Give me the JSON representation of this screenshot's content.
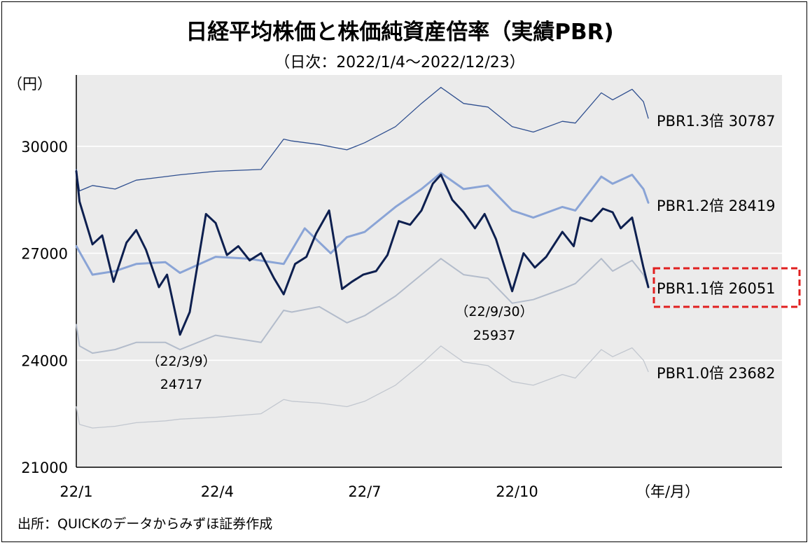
{
  "chart_data": {
    "type": "line",
    "title": "日経平均株価と株価純資産倍率（実績PBR)",
    "subtitle": "（日次：2022/1/4～2022/12/23）",
    "ylabel": "（円）",
    "xlabel": "（年/月）",
    "ylim": [
      21000,
      32000
    ],
    "yticks": [
      "30000",
      "27000",
      "24000",
      "21000"
    ],
    "xticks": [
      {
        "date": "2022-01-04",
        "label": "22/1"
      },
      {
        "date": "2022-04-01",
        "label": "22/4"
      },
      {
        "date": "2022-07-01",
        "label": "22/7"
      },
      {
        "date": "2022-10-03",
        "label": "22/10"
      }
    ],
    "x_range": [
      "2022-01-04",
      "2022-12-23"
    ],
    "grid": true,
    "background": "#ebebeb",
    "series": [
      {
        "name": "PBR1.3倍 30787",
        "color": "#2f4f8f",
        "width": 1.3,
        "dates": [
          "2022-01-04",
          "2022-01-06",
          "2022-01-14",
          "2022-01-28",
          "2022-02-10",
          "2022-02-28",
          "2022-03-09",
          "2022-03-31",
          "2022-04-28",
          "2022-05-12",
          "2022-05-17",
          "2022-06-03",
          "2022-06-20",
          "2022-07-01",
          "2022-07-20",
          "2022-08-05",
          "2022-08-17",
          "2022-08-31",
          "2022-09-15",
          "2022-09-30",
          "2022-10-13",
          "2022-10-31",
          "2022-11-08",
          "2022-11-24",
          "2022-12-01",
          "2022-12-13",
          "2022-12-20",
          "2022-12-23"
        ],
        "values": [
          29350,
          28750,
          28900,
          28800,
          29050,
          29150,
          29200,
          29300,
          29350,
          30200,
          30150,
          30050,
          29900,
          30100,
          30550,
          31200,
          31650,
          31200,
          31100,
          30550,
          30400,
          30700,
          30650,
          31500,
          31300,
          31600,
          31250,
          30787
        ]
      },
      {
        "name": "PBR1.2倍 28419",
        "color": "#8aa4d6",
        "width": 3,
        "dates": [
          "2022-01-04",
          "2022-01-14",
          "2022-01-28",
          "2022-02-10",
          "2022-02-28",
          "2022-03-09",
          "2022-03-31",
          "2022-04-20",
          "2022-05-12",
          "2022-05-25",
          "2022-06-10",
          "2022-06-20",
          "2022-07-01",
          "2022-07-20",
          "2022-08-05",
          "2022-08-17",
          "2022-08-31",
          "2022-09-15",
          "2022-09-30",
          "2022-10-13",
          "2022-10-31",
          "2022-11-08",
          "2022-11-24",
          "2022-12-01",
          "2022-12-13",
          "2022-12-20",
          "2022-12-23"
        ],
        "values": [
          27200,
          26400,
          26500,
          26700,
          26750,
          26450,
          26900,
          26850,
          26700,
          27700,
          27000,
          27450,
          27600,
          28300,
          28800,
          29250,
          28800,
          28900,
          28200,
          28000,
          28300,
          28200,
          29150,
          28950,
          29200,
          28800,
          28419
        ]
      },
      {
        "name": "PBR1.1倍 26051",
        "color": "#0d1f4f",
        "width": 3,
        "dates": [
          "2022-01-04",
          "2022-01-06",
          "2022-01-14",
          "2022-01-20",
          "2022-01-27",
          "2022-02-04",
          "2022-02-10",
          "2022-02-16",
          "2022-02-24",
          "2022-03-01",
          "2022-03-09",
          "2022-03-15",
          "2022-03-25",
          "2022-03-31",
          "2022-04-07",
          "2022-04-14",
          "2022-04-21",
          "2022-04-28",
          "2022-05-06",
          "2022-05-12",
          "2022-05-19",
          "2022-05-26",
          "2022-06-01",
          "2022-06-09",
          "2022-06-17",
          "2022-06-23",
          "2022-06-30",
          "2022-07-08",
          "2022-07-15",
          "2022-07-22",
          "2022-07-29",
          "2022-08-05",
          "2022-08-12",
          "2022-08-17",
          "2022-08-24",
          "2022-08-31",
          "2022-09-07",
          "2022-09-13",
          "2022-09-20",
          "2022-09-30",
          "2022-10-07",
          "2022-10-14",
          "2022-10-21",
          "2022-10-31",
          "2022-11-07",
          "2022-11-11",
          "2022-11-18",
          "2022-11-25",
          "2022-12-01",
          "2022-12-06",
          "2022-12-13",
          "2022-12-20",
          "2022-12-23"
        ],
        "values": [
          29300,
          28450,
          27250,
          27500,
          26200,
          27300,
          27650,
          27100,
          26050,
          26400,
          24717,
          25350,
          28100,
          27850,
          26950,
          27200,
          26800,
          27000,
          26300,
          25850,
          26700,
          26900,
          27550,
          28200,
          26000,
          26200,
          26400,
          26500,
          26950,
          27900,
          27800,
          28200,
          28950,
          29200,
          28500,
          28150,
          27700,
          28100,
          27400,
          25937,
          27000,
          26600,
          26900,
          27600,
          27200,
          28000,
          27900,
          28250,
          28150,
          27700,
          28000,
          26600,
          26051
        ]
      },
      {
        "name": "PBR1.0倍 23682",
        "color": "#c2c7cf",
        "width": 1.3,
        "dates": [
          "2022-01-04",
          "2022-01-06",
          "2022-01-14",
          "2022-01-28",
          "2022-02-10",
          "2022-02-28",
          "2022-03-09",
          "2022-03-31",
          "2022-04-28",
          "2022-05-12",
          "2022-05-17",
          "2022-06-03",
          "2022-06-20",
          "2022-07-01",
          "2022-07-20",
          "2022-08-05",
          "2022-08-17",
          "2022-08-31",
          "2022-09-15",
          "2022-09-30",
          "2022-10-13",
          "2022-10-31",
          "2022-11-08",
          "2022-11-24",
          "2022-12-01",
          "2022-12-13",
          "2022-12-20",
          "2022-12-23"
        ],
        "values": [
          22700,
          22200,
          22100,
          22150,
          22250,
          22300,
          22350,
          22400,
          22500,
          22900,
          22850,
          22800,
          22700,
          22850,
          23300,
          23900,
          24400,
          23950,
          23850,
          23400,
          23300,
          23600,
          23500,
          24300,
          24100,
          24350,
          24000,
          23682
        ]
      },
      {
        "name": "",
        "color": "#b3bccb",
        "width": 2,
        "dates": [
          "2022-01-04",
          "2022-01-06",
          "2022-01-14",
          "2022-01-28",
          "2022-02-10",
          "2022-02-28",
          "2022-03-09",
          "2022-03-31",
          "2022-04-28",
          "2022-05-12",
          "2022-05-17",
          "2022-06-03",
          "2022-06-20",
          "2022-07-01",
          "2022-07-20",
          "2022-08-05",
          "2022-08-17",
          "2022-08-31",
          "2022-09-15",
          "2022-09-30",
          "2022-10-13",
          "2022-10-31",
          "2022-11-08",
          "2022-11-24",
          "2022-12-01",
          "2022-12-13",
          "2022-12-20",
          "2022-12-23"
        ],
        "values": [
          25000,
          24400,
          24200,
          24300,
          24500,
          24500,
          24300,
          24700,
          24500,
          25400,
          25350,
          25500,
          25050,
          25250,
          25800,
          26400,
          26850,
          26400,
          26300,
          25600,
          25700,
          26000,
          26150,
          26850,
          26500,
          26800,
          26400,
          26051
        ]
      }
    ],
    "annotations": [
      {
        "date_label": "（22/3/9）",
        "value_label": "24717"
      },
      {
        "date_label": "（22/9/30）",
        "value_label": "25937"
      }
    ],
    "highlight_color": "#e02020",
    "source": "出所：QUICKのデータからみずほ証券作成"
  }
}
